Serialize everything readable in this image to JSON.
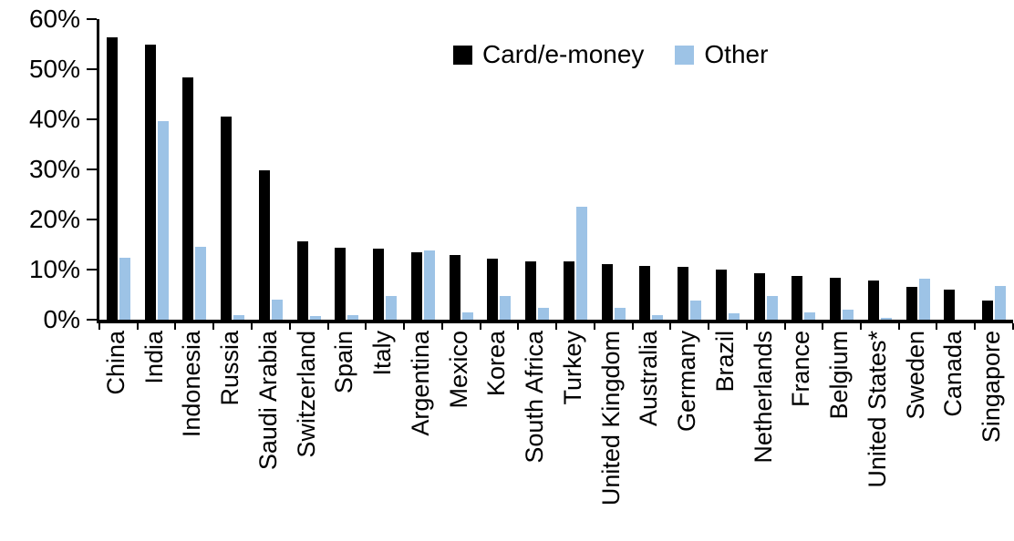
{
  "chart_data": {
    "type": "bar",
    "title": "",
    "xlabel": "",
    "ylabel": "",
    "ylim": [
      0,
      60
    ],
    "grid": false,
    "legend_position": "top-center",
    "y_tick_labels": [
      "0%",
      "10%",
      "20%",
      "30%",
      "40%",
      "50%",
      "60%"
    ],
    "y_tick_values": [
      0,
      10,
      20,
      30,
      40,
      50,
      60
    ],
    "categories": [
      "China",
      "India",
      "Indonesia",
      "Russia",
      "Saudi Arabia",
      "Switzerland",
      "Spain",
      "Italy",
      "Argentina",
      "Mexico",
      "Korea",
      "South Africa",
      "Turkey",
      "United Kingdom",
      "Australia",
      "Germany",
      "Brazil",
      "Netherlands",
      "France",
      "Belgium",
      "United States*",
      "Sweden",
      "Canada",
      "Singapore"
    ],
    "series": [
      {
        "name": "Card/e-money",
        "color": "#000000",
        "values": [
          56.3,
          55.0,
          48.3,
          40.5,
          29.8,
          15.7,
          14.3,
          14.1,
          13.4,
          13.0,
          12.2,
          11.7,
          11.6,
          11.1,
          10.8,
          10.6,
          10.0,
          9.3,
          8.7,
          8.3,
          7.9,
          6.6,
          6.0,
          3.9
        ]
      },
      {
        "name": "Other",
        "color": "#9DC3E6",
        "values": [
          12.3,
          39.7,
          14.6,
          1.0,
          4.0,
          0.8,
          1.0,
          4.7,
          13.8,
          1.4,
          4.7,
          2.4,
          22.5,
          2.3,
          1.0,
          3.9,
          1.2,
          4.8,
          1.5,
          2.0,
          0.3,
          8.2,
          0.0,
          6.7
        ]
      }
    ]
  }
}
